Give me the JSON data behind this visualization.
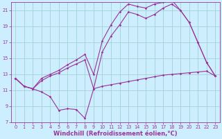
{
  "xlabel": "Windchill (Refroidissement éolien,°C)",
  "background_color": "#cceeff",
  "grid_color": "#99cccc",
  "line_color": "#993399",
  "xlim": [
    -0.5,
    23.5
  ],
  "ylim": [
    7,
    22
  ],
  "xticks": [
    0,
    1,
    2,
    3,
    4,
    5,
    6,
    7,
    8,
    9,
    10,
    11,
    12,
    13,
    14,
    15,
    16,
    17,
    18,
    19,
    20,
    21,
    22,
    23
  ],
  "yticks": [
    7,
    9,
    11,
    13,
    15,
    17,
    19,
    21
  ],
  "line1_x": [
    0,
    1,
    2,
    3,
    4,
    5,
    6,
    7,
    8,
    9,
    10,
    11,
    12,
    13,
    14,
    15,
    16,
    17,
    18,
    19,
    20,
    21,
    22,
    23
  ],
  "line1_y": [
    12.5,
    11.5,
    11.2,
    10.8,
    10.2,
    8.5,
    8.7,
    8.6,
    7.5,
    11.2,
    11.5,
    11.7,
    11.9,
    12.1,
    12.3,
    12.5,
    12.7,
    12.9,
    13.0,
    13.1,
    13.2,
    13.3,
    13.4,
    12.8
  ],
  "line2_x": [
    0,
    1,
    2,
    3,
    4,
    5,
    6,
    7,
    8,
    9,
    10,
    11,
    12,
    13,
    14,
    15,
    16,
    17,
    18,
    19,
    20,
    21,
    22,
    23
  ],
  "line2_y": [
    12.5,
    11.5,
    11.2,
    12.2,
    12.8,
    13.2,
    13.8,
    14.3,
    14.8,
    11.2,
    15.8,
    17.8,
    19.2,
    20.8,
    20.5,
    20.0,
    20.5,
    21.3,
    21.8,
    21.0,
    19.5,
    17.0,
    14.5,
    12.8
  ],
  "line3_x": [
    0,
    1,
    2,
    3,
    4,
    5,
    6,
    7,
    8,
    9,
    10,
    11,
    12,
    13,
    14,
    15,
    16,
    17,
    18,
    19,
    20,
    21,
    22,
    23
  ],
  "line3_y": [
    12.5,
    11.5,
    11.2,
    12.5,
    13.0,
    13.5,
    14.2,
    14.8,
    15.5,
    13.0,
    17.2,
    19.2,
    20.8,
    21.8,
    21.5,
    21.3,
    21.8,
    22.0,
    22.3,
    21.0,
    19.5,
    17.0,
    14.5,
    12.8
  ],
  "marker": "D",
  "markersize": 1.8,
  "linewidth": 0.8,
  "tick_fontsize": 4.8,
  "xlabel_fontsize": 6.0
}
